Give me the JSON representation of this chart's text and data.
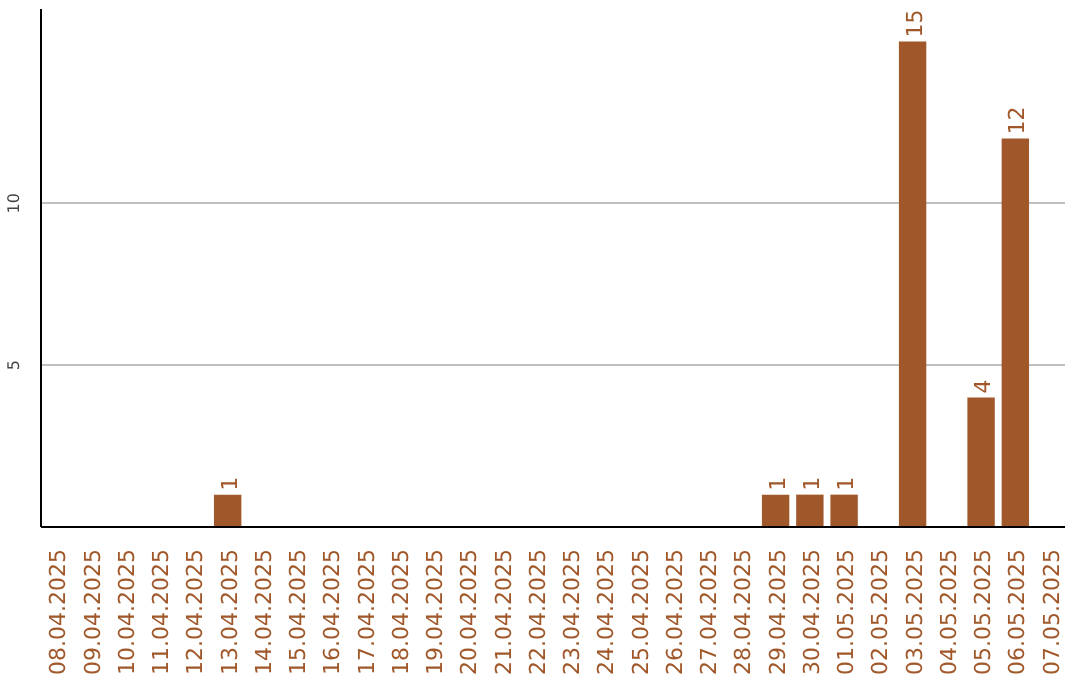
{
  "chart_data": {
    "type": "bar",
    "categories": [
      "08.04.2025",
      "09.04.2025",
      "10.04.2025",
      "11.04.2025",
      "12.04.2025",
      "13.04.2025",
      "14.04.2025",
      "15.04.2025",
      "16.04.2025",
      "17.04.2025",
      "18.04.2025",
      "19.04.2025",
      "20.04.2025",
      "21.04.2025",
      "22.04.2025",
      "23.04.2025",
      "24.04.2025",
      "25.04.2025",
      "26.04.2025",
      "27.04.2025",
      "28.04.2025",
      "29.04.2025",
      "30.04.2025",
      "01.05.2025",
      "02.05.2025",
      "03.05.2025",
      "04.05.2025",
      "05.05.2025",
      "06.05.2025",
      "07.05.2025"
    ],
    "values": [
      0,
      0,
      0,
      0,
      0,
      1,
      0,
      0,
      0,
      0,
      0,
      0,
      0,
      0,
      0,
      0,
      0,
      0,
      0,
      0,
      0,
      1,
      1,
      1,
      0,
      15,
      0,
      4,
      12,
      0
    ],
    "value_labels": [
      null,
      null,
      null,
      null,
      null,
      "1",
      null,
      null,
      null,
      null,
      null,
      null,
      null,
      null,
      null,
      null,
      null,
      null,
      null,
      null,
      null,
      "1",
      "1",
      "1",
      null,
      "15",
      null,
      "4",
      "12",
      null
    ],
    "color": "#a0582a",
    "ylim": [
      0,
      16
    ],
    "yticks": [
      5,
      10
    ],
    "grid": "y"
  }
}
